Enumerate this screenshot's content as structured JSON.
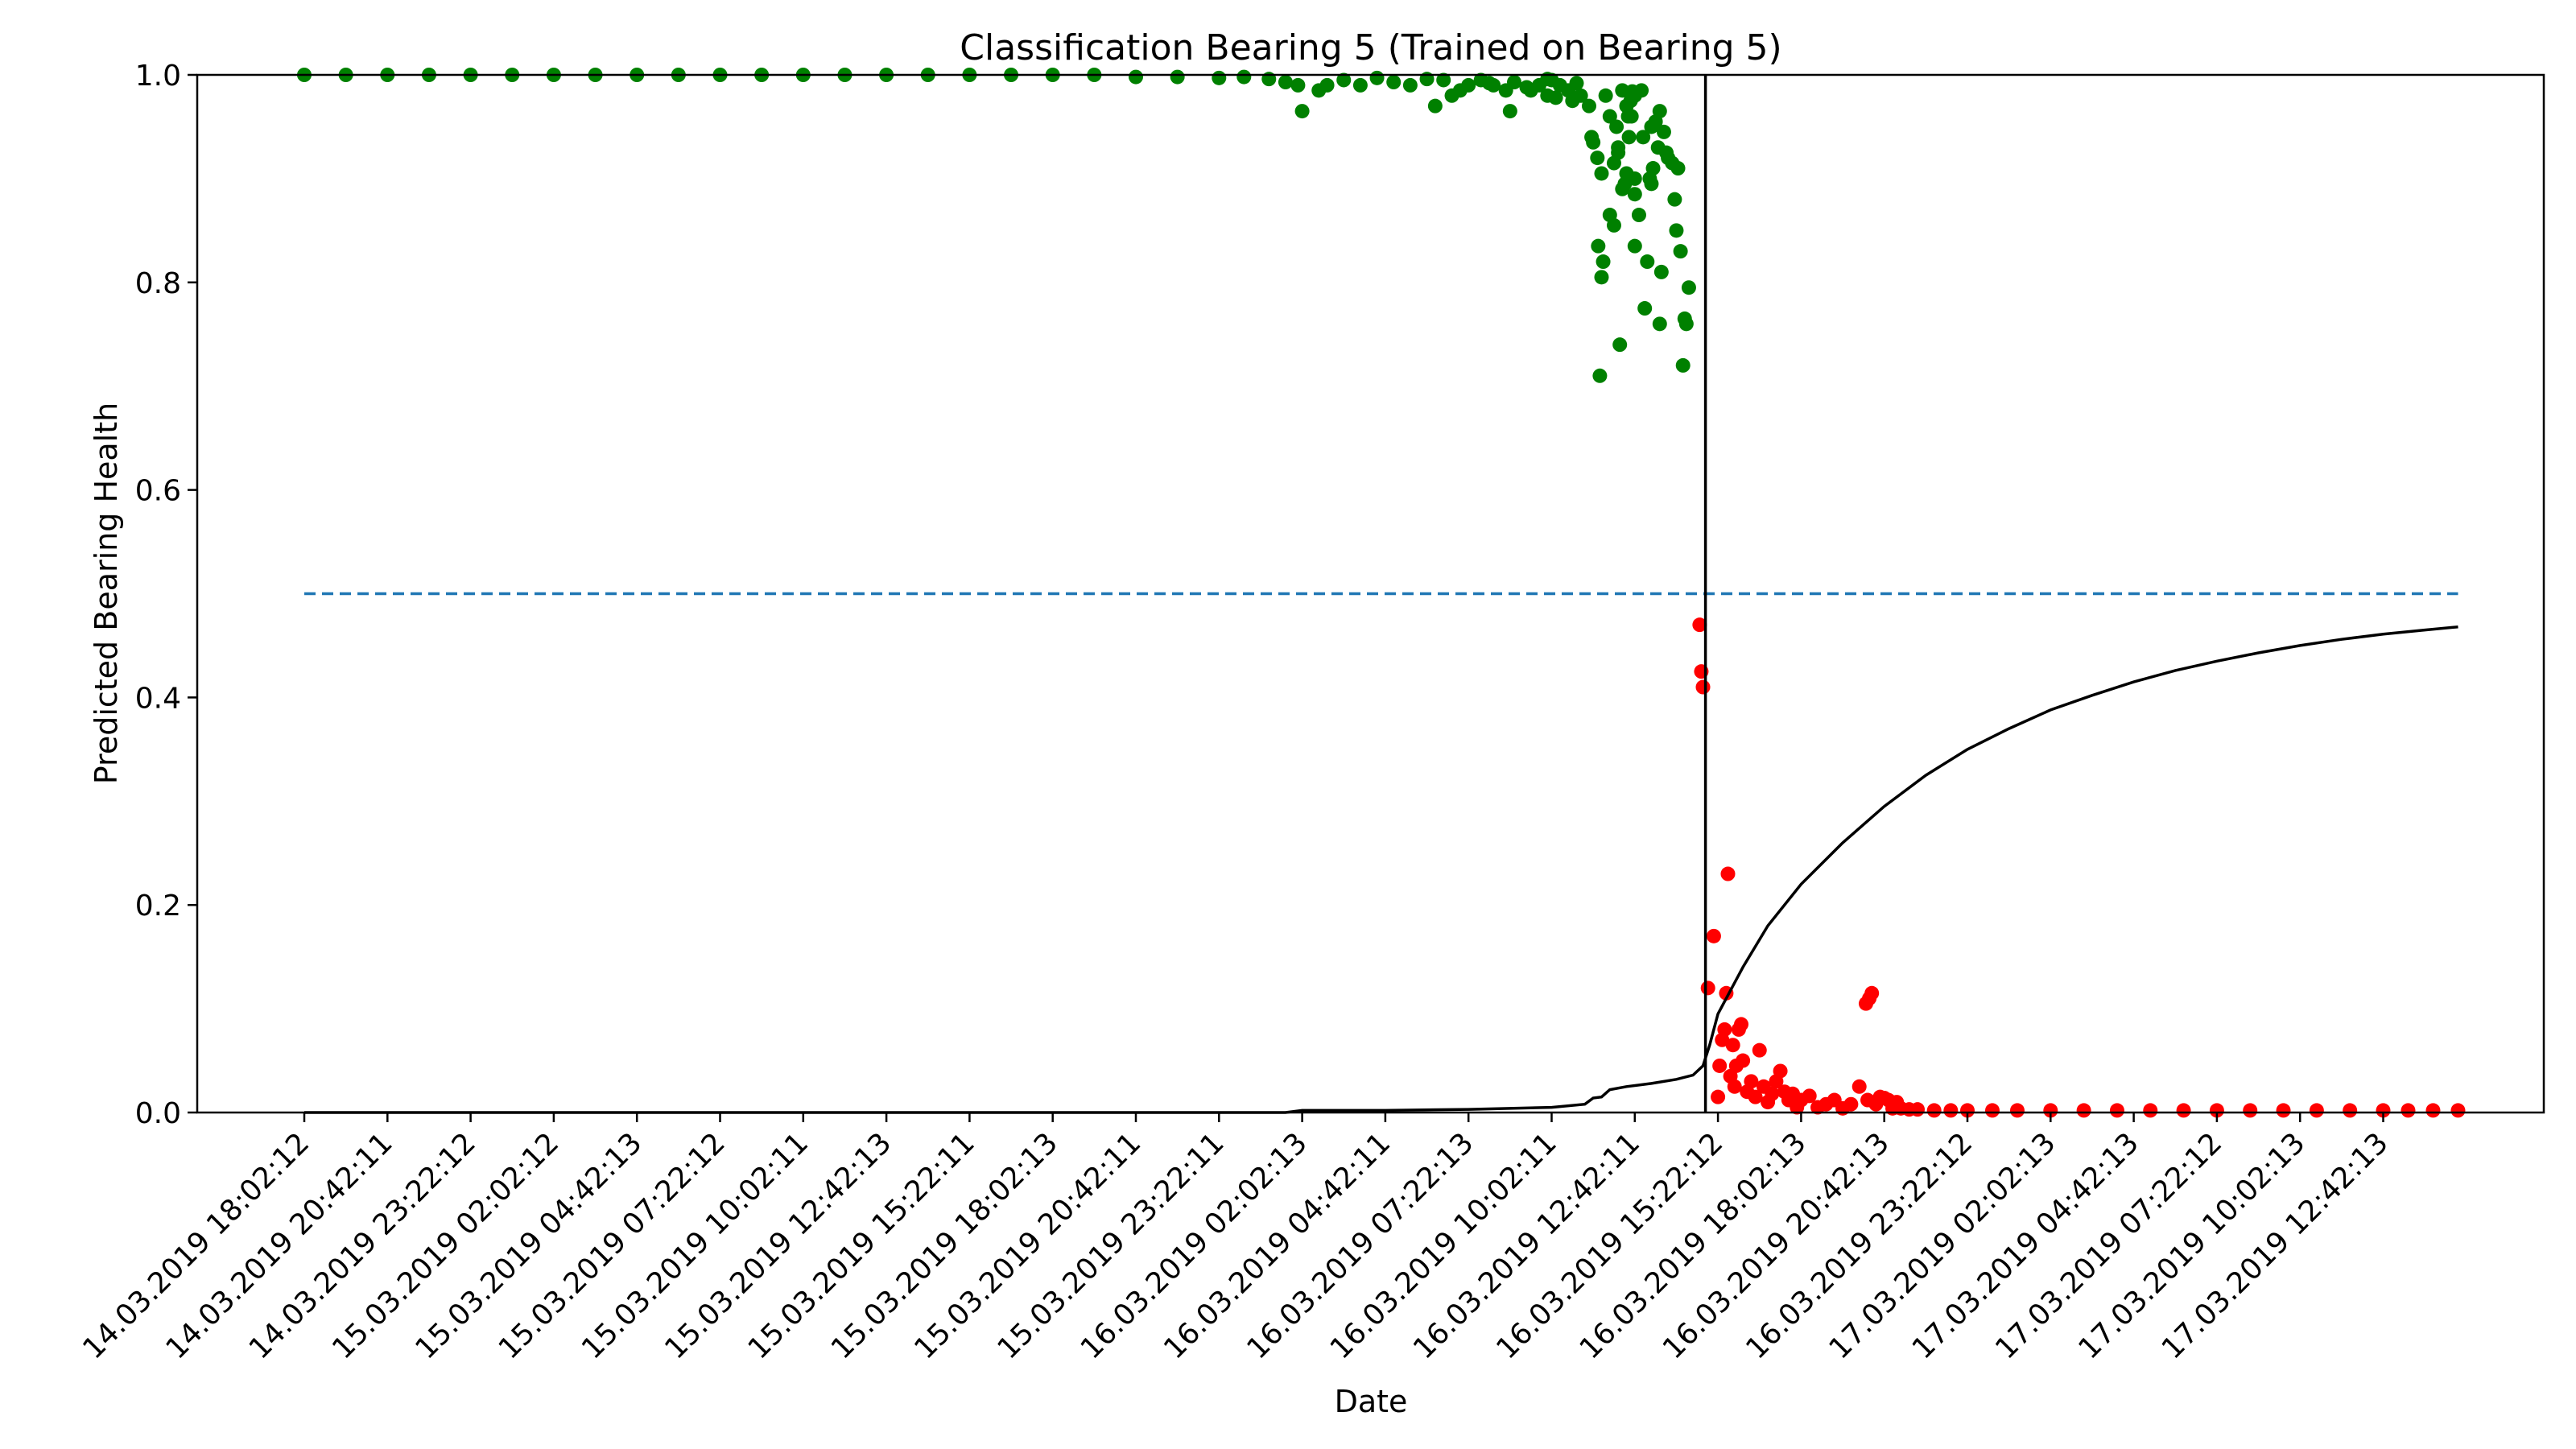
{
  "chart_data": {
    "type": "scatter",
    "title": "Classification Bearing 5 (Trained on Bearing 5)",
    "xlabel": "Date",
    "ylabel": "Predicted Bearing Health",
    "ylim": [
      0.0,
      1.0
    ],
    "grid": false,
    "legend": "none",
    "x_tick_labels": [
      "14.03.2019 18:02:12",
      "14.03.2019 20:42:11",
      "14.03.2019 23:22:12",
      "15.03.2019 02:02:12",
      "15.03.2019 04:42:13",
      "15.03.2019 07:22:12",
      "15.03.2019 10:02:11",
      "15.03.2019 12:42:13",
      "15.03.2019 15:22:11",
      "15.03.2019 18:02:13",
      "15.03.2019 20:42:11",
      "15.03.2019 23:22:11",
      "16.03.2019 02:02:13",
      "16.03.2019 04:42:11",
      "16.03.2019 07:22:13",
      "16.03.2019 10:02:11",
      "16.03.2019 12:42:11",
      "16.03.2019 15:22:12",
      "16.03.2019 18:02:13",
      "16.03.2019 20:42:13",
      "16.03.2019 23:22:12",
      "17.03.2019 02:02:13",
      "17.03.2019 04:42:13",
      "17.03.2019 07:22:12",
      "17.03.2019 10:02:13",
      "17.03.2019 12:42:13"
    ],
    "y_ticks": [
      0.0,
      0.2,
      0.4,
      0.6,
      0.8,
      1.0
    ],
    "y_tick_labels": [
      "0.0",
      "0.2",
      "0.4",
      "0.6",
      "0.8",
      "1.0"
    ],
    "threshold": {
      "y": 0.5,
      "color": "#1f77b4",
      "style": "dashed"
    },
    "change_point_tick": 16.85,
    "x_end_tick": 25.9,
    "series": [
      {
        "class": "healthy",
        "color": "#008000",
        "points": [
          [
            0.0,
            1.0
          ],
          [
            0.5,
            1.0
          ],
          [
            1.0,
            1.0
          ],
          [
            1.5,
            1.0
          ],
          [
            2.0,
            1.0
          ],
          [
            2.5,
            1.0
          ],
          [
            3.0,
            1.0
          ],
          [
            3.5,
            1.0
          ],
          [
            4.0,
            1.0
          ],
          [
            4.5,
            1.0
          ],
          [
            5.0,
            1.0
          ],
          [
            5.5,
            1.0
          ],
          [
            6.0,
            1.0
          ],
          [
            6.5,
            1.0
          ],
          [
            7.0,
            1.0
          ],
          [
            7.5,
            1.0
          ],
          [
            8.0,
            1.0
          ],
          [
            8.5,
            1.0
          ],
          [
            9.0,
            1.0
          ],
          [
            9.5,
            1.0
          ],
          [
            10.0,
            0.998
          ],
          [
            10.5,
            0.998
          ],
          [
            11.0,
            0.997
          ],
          [
            11.3,
            0.998
          ],
          [
            11.6,
            0.996
          ],
          [
            11.8,
            0.993
          ],
          [
            11.95,
            0.99
          ],
          [
            12.0,
            0.965
          ],
          [
            12.2,
            0.985
          ],
          [
            12.3,
            0.99
          ],
          [
            12.5,
            0.995
          ],
          [
            12.7,
            0.99
          ],
          [
            12.9,
            0.997
          ],
          [
            13.1,
            0.993
          ],
          [
            13.3,
            0.99
          ],
          [
            13.5,
            0.996
          ],
          [
            13.7,
            0.995
          ],
          [
            13.8,
            0.98
          ],
          [
            13.9,
            0.985
          ],
          [
            14.0,
            0.99
          ],
          [
            14.15,
            0.995
          ],
          [
            14.3,
            0.99
          ],
          [
            14.45,
            0.985
          ],
          [
            14.55,
            0.993
          ],
          [
            14.7,
            0.988
          ],
          [
            14.85,
            0.99
          ],
          [
            14.95,
            0.98
          ],
          [
            15.0,
            0.995
          ],
          [
            15.05,
            0.978
          ],
          [
            15.1,
            0.99
          ],
          [
            15.2,
            0.985
          ],
          [
            15.25,
            0.975
          ],
          [
            15.3,
            0.992
          ],
          [
            15.35,
            0.98
          ],
          [
            15.45,
            0.97
          ],
          [
            15.5,
            0.935
          ],
          [
            15.55,
            0.92
          ],
          [
            15.6,
            0.905
          ],
          [
            15.65,
            0.98
          ],
          [
            15.7,
            0.96
          ],
          [
            15.75,
            0.915
          ],
          [
            15.8,
            0.93
          ],
          [
            15.85,
            0.89
          ],
          [
            15.9,
            0.97
          ],
          [
            15.92,
            0.96
          ],
          [
            15.95,
            0.975
          ],
          [
            15.97,
            0.984
          ],
          [
            16.0,
            0.98
          ],
          [
            15.48,
            0.94
          ],
          [
            14.5,
            0.965
          ],
          [
            14.25,
            0.992
          ],
          [
            14.75,
            0.985
          ],
          [
            14.95,
            0.996
          ],
          [
            13.6,
            0.97
          ],
          [
            15.58,
            0.71
          ],
          [
            15.56,
            0.835
          ],
          [
            15.6,
            0.805
          ],
          [
            15.62,
            0.82
          ],
          [
            15.7,
            0.865
          ],
          [
            15.75,
            0.855
          ],
          [
            15.78,
            0.95
          ],
          [
            15.8,
            0.925
          ],
          [
            15.82,
            0.74
          ],
          [
            15.85,
            0.985
          ],
          [
            15.88,
            0.895
          ],
          [
            15.9,
            0.905
          ],
          [
            15.93,
            0.94
          ],
          [
            15.96,
            0.96
          ],
          [
            16.0,
            0.885
          ],
          [
            16.0,
            0.835
          ],
          [
            16.05,
            0.865
          ],
          [
            16.08,
            0.985
          ],
          [
            16.1,
            0.94
          ],
          [
            16.12,
            0.775
          ],
          [
            16.15,
            0.82
          ],
          [
            16.18,
            0.9
          ],
          [
            16.2,
            0.95
          ],
          [
            16.22,
            0.91
          ],
          [
            16.25,
            0.955
          ],
          [
            16.28,
            0.93
          ],
          [
            16.3,
            0.965
          ],
          [
            16.32,
            0.81
          ],
          [
            16.35,
            0.945
          ],
          [
            16.38,
            0.925
          ],
          [
            16.4,
            0.92
          ],
          [
            16.45,
            0.915
          ],
          [
            16.48,
            0.88
          ],
          [
            16.5,
            0.85
          ],
          [
            16.52,
            0.91
          ],
          [
            16.55,
            0.83
          ],
          [
            16.58,
            0.72
          ],
          [
            16.6,
            0.765
          ],
          [
            16.62,
            0.76
          ],
          [
            16.65,
            0.795
          ],
          [
            16.3,
            0.76
          ],
          [
            16.2,
            0.895
          ],
          [
            16.0,
            0.9
          ]
        ]
      },
      {
        "class": "faulty",
        "color": "#ff0000",
        "points": [
          [
            16.78,
            0.47
          ],
          [
            16.8,
            0.425
          ],
          [
            16.82,
            0.41
          ],
          [
            16.88,
            0.12
          ],
          [
            16.95,
            0.17
          ],
          [
            17.0,
            0.015
          ],
          [
            17.02,
            0.045
          ],
          [
            17.05,
            0.07
          ],
          [
            17.08,
            0.08
          ],
          [
            17.1,
            0.115
          ],
          [
            17.12,
            0.23
          ],
          [
            17.15,
            0.035
          ],
          [
            17.18,
            0.065
          ],
          [
            17.2,
            0.025
          ],
          [
            17.22,
            0.045
          ],
          [
            17.25,
            0.08
          ],
          [
            17.28,
            0.085
          ],
          [
            17.3,
            0.05
          ],
          [
            17.35,
            0.02
          ],
          [
            17.4,
            0.03
          ],
          [
            17.45,
            0.015
          ],
          [
            17.5,
            0.06
          ],
          [
            17.55,
            0.025
          ],
          [
            17.6,
            0.01
          ],
          [
            17.65,
            0.018
          ],
          [
            17.7,
            0.03
          ],
          [
            17.75,
            0.04
          ],
          [
            17.8,
            0.02
          ],
          [
            17.85,
            0.012
          ],
          [
            17.9,
            0.018
          ],
          [
            17.95,
            0.005
          ],
          [
            18.0,
            0.012
          ],
          [
            18.1,
            0.016
          ],
          [
            18.2,
            0.005
          ],
          [
            18.3,
            0.008
          ],
          [
            18.4,
            0.012
          ],
          [
            18.5,
            0.004
          ],
          [
            18.6,
            0.008
          ],
          [
            18.7,
            0.025
          ],
          [
            18.8,
            0.012
          ],
          [
            18.9,
            0.008
          ],
          [
            18.95,
            0.015
          ],
          [
            19.0,
            0.014
          ],
          [
            19.05,
            0.012
          ],
          [
            19.1,
            0.004
          ],
          [
            19.15,
            0.01
          ],
          [
            19.2,
            0.004
          ],
          [
            19.3,
            0.003
          ],
          [
            19.4,
            0.003
          ],
          [
            18.82,
            0.11
          ],
          [
            18.85,
            0.115
          ],
          [
            18.78,
            0.105
          ],
          [
            19.6,
            0.002
          ],
          [
            19.8,
            0.002
          ],
          [
            20.0,
            0.002
          ],
          [
            20.3,
            0.002
          ],
          [
            20.6,
            0.002
          ],
          [
            21.0,
            0.002
          ],
          [
            21.4,
            0.002
          ],
          [
            21.8,
            0.002
          ],
          [
            22.2,
            0.002
          ],
          [
            22.6,
            0.002
          ],
          [
            23.0,
            0.002
          ],
          [
            23.4,
            0.002
          ],
          [
            23.8,
            0.002
          ],
          [
            24.2,
            0.002
          ],
          [
            24.6,
            0.002
          ],
          [
            25.0,
            0.002
          ],
          [
            25.3,
            0.002
          ],
          [
            25.6,
            0.002
          ],
          [
            25.9,
            0.002
          ]
        ]
      }
    ],
    "trend_line": {
      "color": "#000000",
      "points": [
        [
          0.0,
          0.0
        ],
        [
          11.8,
          0.0
        ],
        [
          12.0,
          0.002
        ],
        [
          13.0,
          0.002
        ],
        [
          14.0,
          0.003
        ],
        [
          15.0,
          0.005
        ],
        [
          15.4,
          0.008
        ],
        [
          15.5,
          0.014
        ],
        [
          15.6,
          0.015
        ],
        [
          15.7,
          0.022
        ],
        [
          15.9,
          0.025
        ],
        [
          16.2,
          0.028
        ],
        [
          16.5,
          0.032
        ],
        [
          16.7,
          0.036
        ],
        [
          16.82,
          0.045
        ],
        [
          16.9,
          0.065
        ],
        [
          17.0,
          0.095
        ],
        [
          17.3,
          0.14
        ],
        [
          17.6,
          0.18
        ],
        [
          18.0,
          0.22
        ],
        [
          18.5,
          0.26
        ],
        [
          19.0,
          0.295
        ],
        [
          19.5,
          0.325
        ],
        [
          20.0,
          0.35
        ],
        [
          20.5,
          0.37
        ],
        [
          21.0,
          0.388
        ],
        [
          21.5,
          0.402
        ],
        [
          22.0,
          0.415
        ],
        [
          22.5,
          0.426
        ],
        [
          23.0,
          0.435
        ],
        [
          23.5,
          0.443
        ],
        [
          24.0,
          0.45
        ],
        [
          24.5,
          0.456
        ],
        [
          25.0,
          0.461
        ],
        [
          25.5,
          0.465
        ],
        [
          25.9,
          0.468
        ]
      ]
    }
  }
}
